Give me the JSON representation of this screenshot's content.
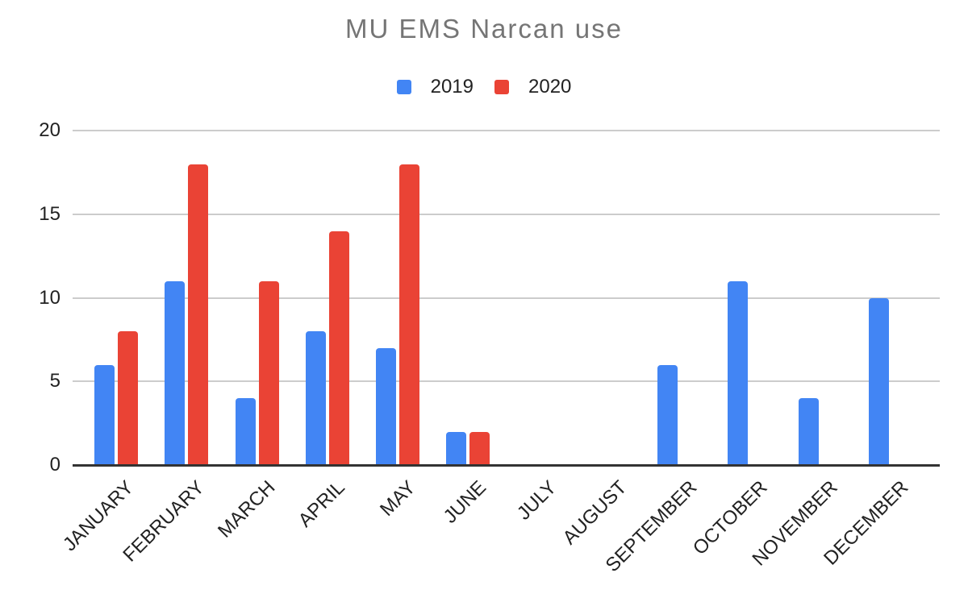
{
  "chart_data": {
    "type": "bar",
    "title": "MU EMS Narcan use",
    "categories": [
      "JANUARY",
      "FEBRUARY",
      "MARCH",
      "APRIL",
      "MAY",
      "JUNE",
      "JULY",
      "AUGUST",
      "SEPTEMBER",
      "OCTOBER",
      "NOVEMBER",
      "DECEMBER"
    ],
    "series": [
      {
        "name": "2019",
        "color": "#4285F4",
        "values": [
          6,
          11,
          4,
          8,
          7,
          2,
          0,
          0,
          6,
          11,
          4,
          10
        ]
      },
      {
        "name": "2020",
        "color": "#EA4335",
        "values": [
          8,
          18,
          11,
          14,
          18,
          2,
          0,
          0,
          0,
          0,
          0,
          0
        ]
      }
    ],
    "xlabel": "",
    "ylabel": "",
    "ylim": [
      0,
      20
    ],
    "yticks": [
      0,
      5,
      10,
      15,
      20
    ],
    "grid": true,
    "legend_position": "top"
  },
  "colors": {
    "title_text": "#757575",
    "axis_text": "#222222",
    "gridline": "#cccccc",
    "axis_line": "#333333",
    "background": "#ffffff",
    "series_2019": "#4285F4",
    "series_2020": "#EA4335"
  }
}
